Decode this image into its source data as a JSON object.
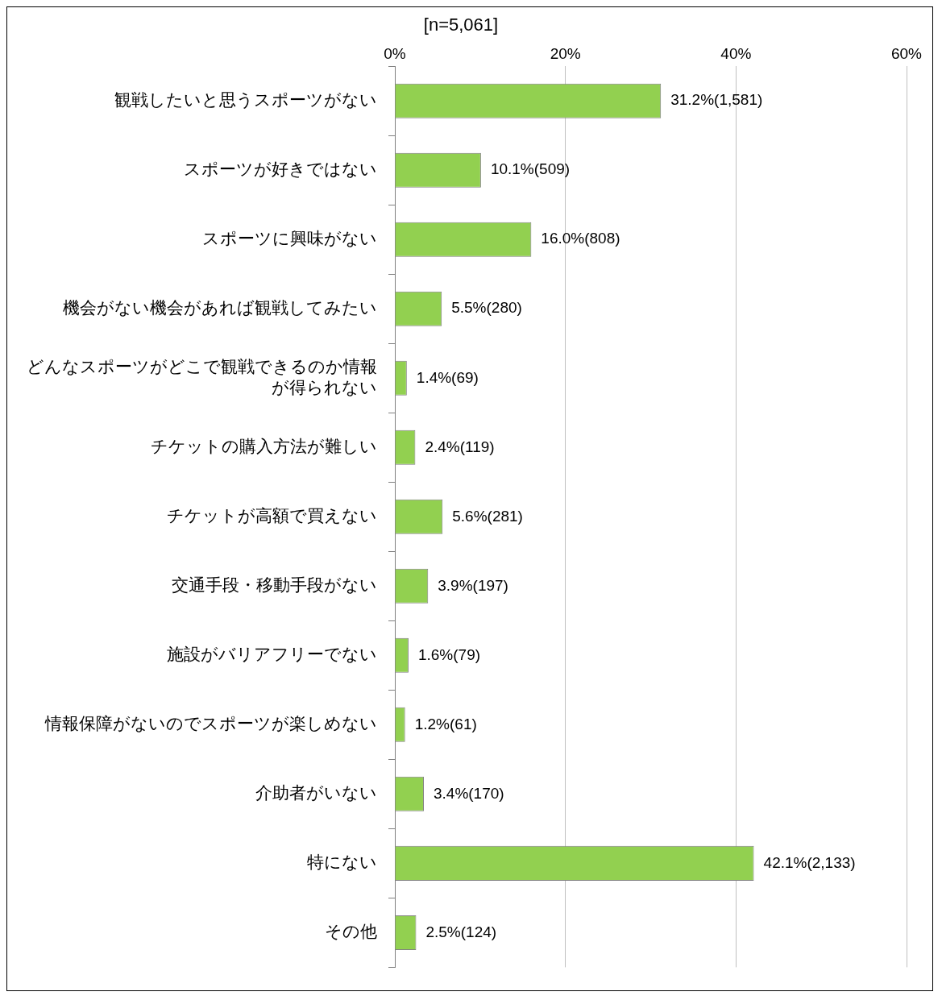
{
  "chart_data": {
    "type": "bar",
    "orientation": "horizontal",
    "title": "[n=5,061]",
    "categories": [
      "観戦したいと思うスポーツがない",
      "スポーツが好きではない",
      "スポーツに興味がない",
      "機会がない機会があれば観戦してみたい",
      "どんなスポーツがどこで観戦できるのか情報が得られない",
      "チケットの購入方法が難しい",
      "チケットが高額で買えない",
      "交通手段・移動手段がない",
      "施設がバリアフリーでない",
      "情報保障がないのでスポーツが楽しめない",
      "介助者がいない",
      "特にない",
      "その他"
    ],
    "values": [
      31.2,
      10.1,
      16.0,
      5.5,
      1.4,
      2.4,
      5.6,
      3.9,
      1.6,
      1.2,
      3.4,
      42.1,
      2.5
    ],
    "value_labels": [
      "31.2%(1,581)",
      "10.1%(509)",
      "16.0%(808)",
      "5.5%(280)",
      "1.4%(69)",
      "2.4%(119)",
      "5.6%(281)",
      "3.9%(197)",
      "1.6%(79)",
      "1.2%(61)",
      "3.4%(170)",
      "42.1%(2,133)",
      "2.5%(124)"
    ],
    "color": "#92d050",
    "xlim": [
      0,
      60
    ],
    "xticks": [
      {
        "value": 0,
        "label": "0%"
      },
      {
        "value": 20,
        "label": "20%"
      },
      {
        "value": 40,
        "label": "40%"
      },
      {
        "value": 60,
        "label": "60%"
      }
    ],
    "grid": "x"
  }
}
